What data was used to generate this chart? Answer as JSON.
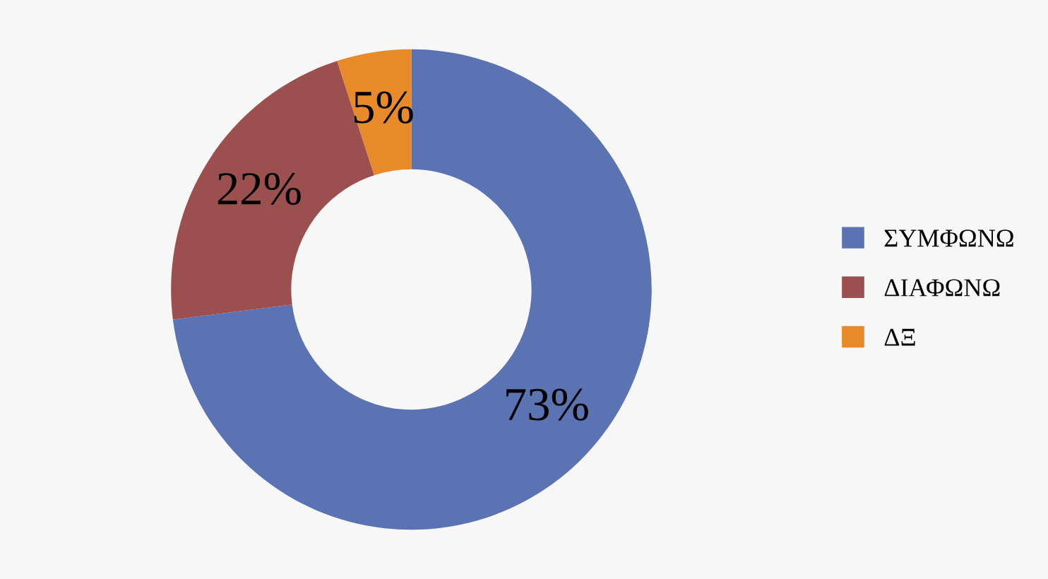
{
  "chart_data": {
    "type": "donut",
    "categories": [
      "ΣΥΜΦΩΝΩ",
      "ΔΙΑΦΩΝΩ",
      "ΔΞ"
    ],
    "values": [
      73,
      22,
      5
    ],
    "colors": [
      "#5b73b3",
      "#9b4f4f",
      "#e8892a"
    ],
    "value_labels": [
      "73%",
      "22%",
      "5%"
    ],
    "legend": "right"
  }
}
